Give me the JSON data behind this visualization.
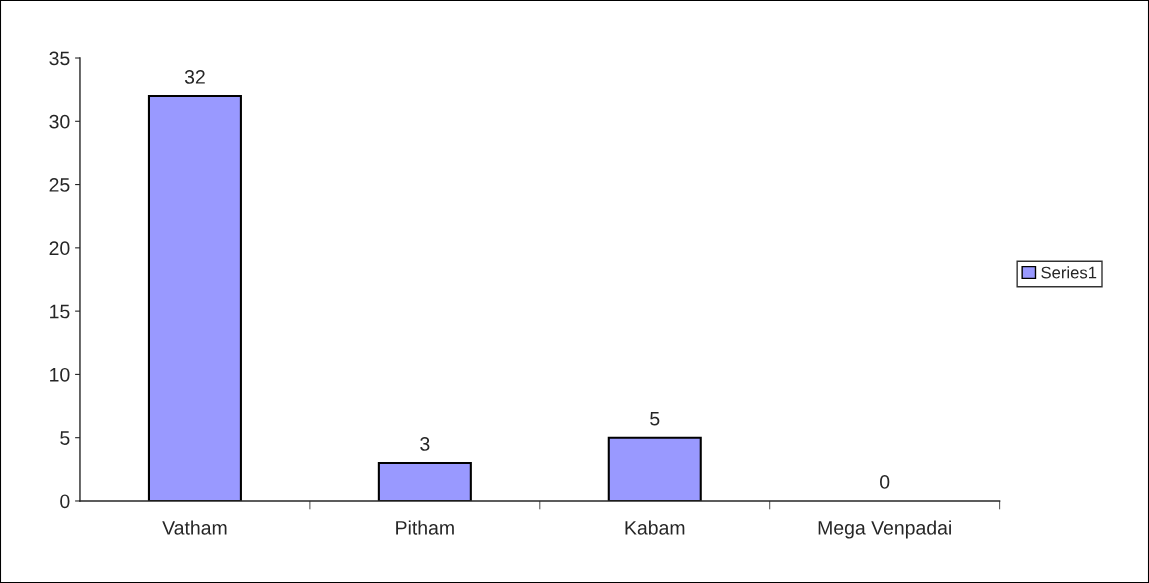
{
  "chart_data": {
    "type": "bar",
    "categories": [
      "Vatham",
      "Pitham",
      "Kabam",
      "Mega Venpadai"
    ],
    "series": [
      {
        "name": "Series1",
        "color": "#9999ff",
        "values": [
          32,
          3,
          5,
          0
        ]
      }
    ],
    "ylim": [
      0,
      35
    ],
    "yticks": [
      0,
      5,
      10,
      15,
      20,
      25,
      30,
      35
    ],
    "data_labels": true,
    "grid": false,
    "legend": "right"
  }
}
